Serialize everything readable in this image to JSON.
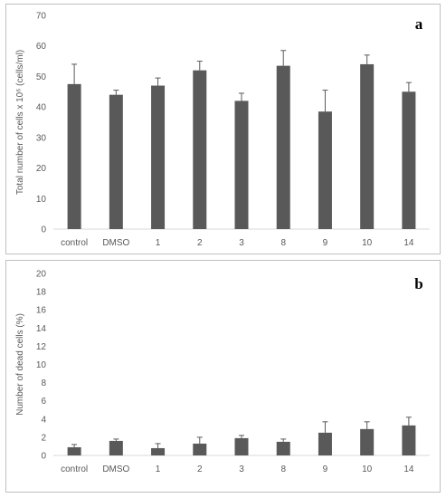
{
  "chart_data": [
    {
      "type": "bar",
      "panel_label": "a",
      "ylabel": "Total number of cells x 10⁶ (cells/ml)",
      "ylim": [
        0,
        70
      ],
      "yticks": [
        0,
        10,
        20,
        30,
        40,
        50,
        60,
        70
      ],
      "categories": [
        "control",
        "DMSO",
        "1",
        "2",
        "3",
        "8",
        "9",
        "10",
        "14"
      ],
      "values": [
        47.5,
        44,
        47,
        52,
        42,
        53.5,
        38.5,
        54,
        45
      ],
      "errors": [
        6.5,
        1.5,
        2.5,
        3,
        2.5,
        5,
        7,
        3,
        3
      ],
      "bar_color": "#595959",
      "grid": false
    },
    {
      "type": "bar",
      "panel_label": "b",
      "ylabel": "Number of dead cells (%)",
      "ylim": [
        0,
        20
      ],
      "yticks": [
        0,
        2,
        4,
        6,
        8,
        10,
        12,
        14,
        16,
        18,
        20
      ],
      "categories": [
        "control",
        "DMSO",
        "1",
        "2",
        "3",
        "8",
        "9",
        "10",
        "14"
      ],
      "values": [
        0.9,
        1.6,
        0.8,
        1.3,
        1.9,
        1.5,
        2.5,
        2.9,
        3.3
      ],
      "errors": [
        0.3,
        0.2,
        0.5,
        0.7,
        0.3,
        0.3,
        1.2,
        0.8,
        0.9
      ],
      "bar_color": "#595959",
      "grid": false
    }
  ]
}
